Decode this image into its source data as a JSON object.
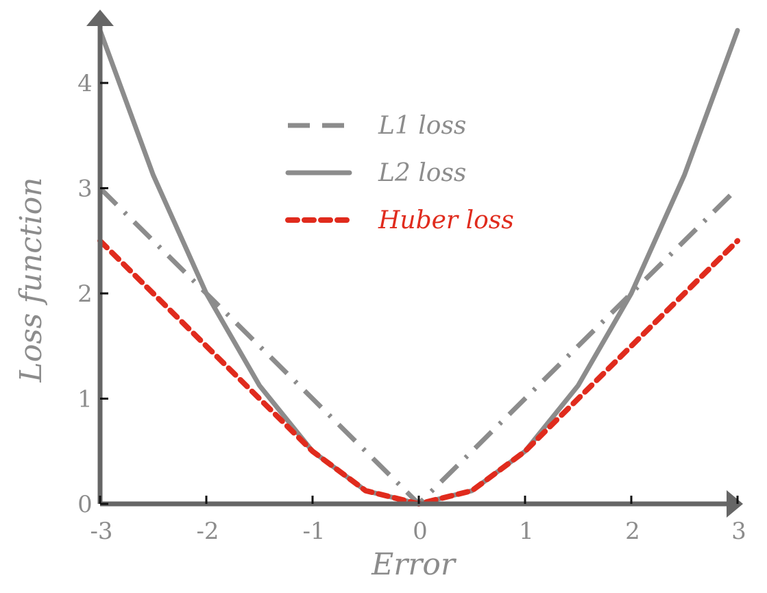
{
  "chart_data": {
    "type": "line",
    "xlabel": "Error",
    "ylabel": "Loss function",
    "xlim": [
      -3,
      3
    ],
    "ylim": [
      0,
      4.5
    ],
    "x_ticks": [
      "-3",
      "-2",
      "-1",
      "0",
      "1",
      "2",
      "3"
    ],
    "y_ticks": [
      "0",
      "1",
      "2",
      "3",
      "4"
    ],
    "legend_position": "top-center",
    "series": [
      {
        "name": "L1 loss",
        "color": "#8c8c8c",
        "style": "dashdot",
        "x": [
          -3,
          -2,
          -1,
          -0.5,
          -0.1,
          0,
          0.1,
          0.5,
          1,
          2,
          3
        ],
        "y": [
          3,
          2,
          1,
          0.5,
          0.1,
          0,
          0.1,
          0.5,
          1,
          2,
          3
        ]
      },
      {
        "name": "L2 loss",
        "color": "#8c8c8c",
        "style": "solid",
        "x": [
          -3,
          -2.5,
          -2,
          -1.5,
          -1,
          -0.5,
          0,
          0.5,
          1,
          1.5,
          2,
          2.5,
          3
        ],
        "y": [
          4.5,
          3.125,
          2,
          1.125,
          0.5,
          0.125,
          0,
          0.125,
          0.5,
          1.125,
          2,
          3.125,
          4.5
        ]
      },
      {
        "name": "Huber loss",
        "color": "#e02b1d",
        "style": "dotted",
        "x": [
          -3,
          -2.5,
          -2,
          -1.5,
          -1,
          -0.5,
          0,
          0.5,
          1,
          1.5,
          2,
          2.5,
          3
        ],
        "y": [
          2.5,
          2,
          1.5,
          1,
          0.5,
          0.125,
          0,
          0.125,
          0.5,
          1,
          1.5,
          2,
          2.5
        ]
      }
    ]
  }
}
